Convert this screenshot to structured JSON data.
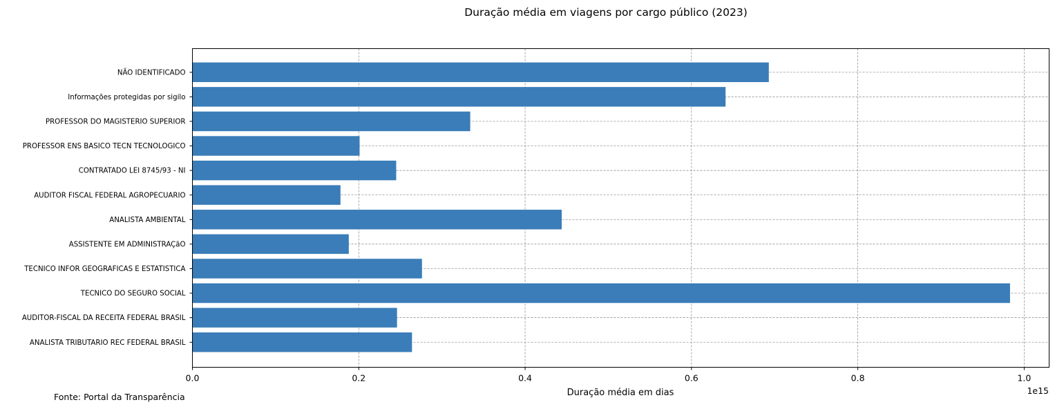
{
  "chart_data": {
    "type": "bar",
    "orientation": "horizontal",
    "title": "Duração média em viagens por cargo público (2023)",
    "xlabel": "Duração média em dias",
    "ylabel": "",
    "x_scale_label": "1e15",
    "xlim": [
      0,
      1.03
    ],
    "x_ticks": [
      0.0,
      0.2,
      0.4,
      0.6,
      0.8,
      1.0
    ],
    "x_tick_labels": [
      "0.0",
      "0.2",
      "0.4",
      "0.6",
      "0.8",
      "1.0"
    ],
    "grid": true,
    "bar_color": "#3a7db8",
    "categories": [
      "ANALISTA TRIBUTARIO REC FEDERAL BRASIL",
      "AUDITOR-FISCAL DA RECEITA FEDERAL BRASIL",
      "TECNICO DO SEGURO SOCIAL",
      "TECNICO INFOR GEOGRAFICAS E ESTATISTICA",
      "ASSISTENTE EM ADMINISTRAÇãO",
      "ANALISTA AMBIENTAL",
      "AUDITOR FISCAL FEDERAL AGROPECUARIO",
      "CONTRATADO LEI 8745/93 - NI",
      "PROFESSOR ENS BASICO TECN TECNOLOGICO",
      "PROFESSOR DO MAGISTERIO SUPERIOR",
      "Informações protegidas por sigilo",
      "NÃO IDENTIFICADO"
    ],
    "values": [
      0.264,
      0.246,
      0.983,
      0.276,
      0.188,
      0.444,
      0.178,
      0.245,
      0.201,
      0.334,
      0.641,
      0.693
    ],
    "source_note": "Fonte: Portal da Transparência"
  }
}
